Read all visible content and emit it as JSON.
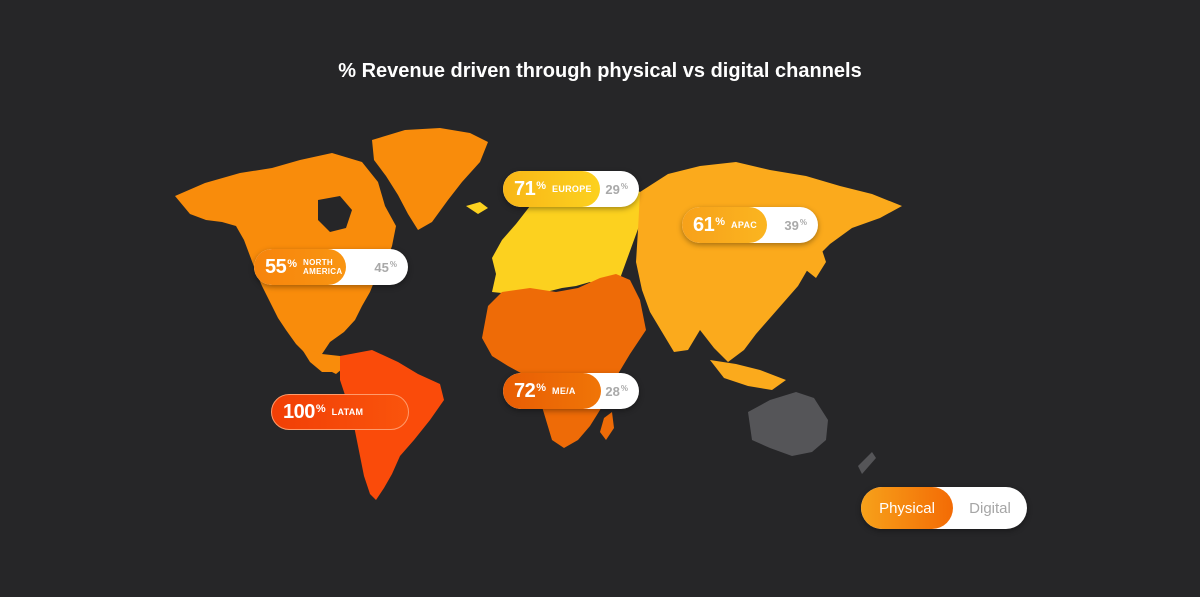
{
  "title": "% Revenue driven through physical vs digital channels",
  "colors": {
    "background": "#262628",
    "north_america": "#f98c0b",
    "latam": "#fa4b0a",
    "europe": "#fcd11f",
    "mea": "#ee6b07",
    "apac": "#fbaa1c",
    "oceania": "#555558",
    "digital_text": "#a9a9a9"
  },
  "regions": [
    {
      "id": "europe",
      "label": "EUROPE",
      "physical": 71,
      "digital": 29,
      "percent_symbol": "%"
    },
    {
      "id": "apac",
      "label": "APAC",
      "physical": 61,
      "digital": 39,
      "percent_symbol": "%"
    },
    {
      "id": "north-america",
      "label": "NORTH AMERICA",
      "label_line1": "NORTH",
      "label_line2": "AMERICA",
      "physical": 55,
      "digital": 45,
      "percent_symbol": "%"
    },
    {
      "id": "mea",
      "label": "ME/A",
      "physical": 72,
      "digital": 28,
      "percent_symbol": "%"
    },
    {
      "id": "latam",
      "label": "LATAM",
      "physical": 100,
      "percent_symbol": "%"
    }
  ],
  "legend": {
    "physical": "Physical",
    "digital": "Digital"
  }
}
